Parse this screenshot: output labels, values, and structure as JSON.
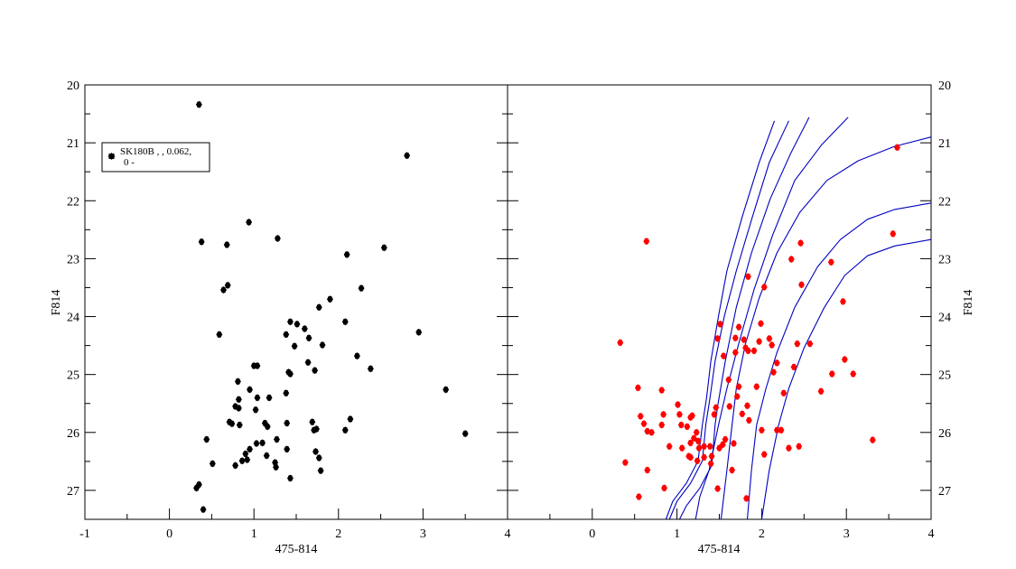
{
  "chart_data": [
    {
      "type": "scatter",
      "panel": "left",
      "xlabel": "475-814",
      "ylabel": "F814",
      "xlim": [
        -1,
        4
      ],
      "ylim": [
        27.5,
        20
      ],
      "y_inverted": true,
      "x_ticks": [
        "-1",
        "0",
        "1",
        "2",
        "3",
        "4"
      ],
      "y_ticks": [
        "20",
        "21",
        "22",
        "23",
        "24",
        "25",
        "26",
        "27"
      ],
      "legend": {
        "placement": "top-left",
        "line1": "SK180B  ,   , 0.062,",
        "line2": "0 -"
      },
      "series": [
        {
          "name": "SK180B",
          "color": "#000000",
          "points": [
            [
              0.35,
              20.34
            ],
            [
              2.81,
              21.22
            ],
            [
              0.94,
              22.37
            ],
            [
              0.38,
              22.71
            ],
            [
              0.68,
              22.76
            ],
            [
              1.28,
              22.65
            ],
            [
              2.1,
              22.93
            ],
            [
              2.54,
              22.81
            ],
            [
              0.64,
              23.54
            ],
            [
              0.69,
              23.46
            ],
            [
              2.27,
              23.51
            ],
            [
              1.9,
              23.7
            ],
            [
              1.77,
              23.84
            ],
            [
              2.08,
              24.09
            ],
            [
              0.59,
              24.31
            ],
            [
              1.43,
              24.09
            ],
            [
              1.51,
              24.13
            ],
            [
              1.6,
              24.21
            ],
            [
              1.38,
              24.31
            ],
            [
              1.65,
              24.37
            ],
            [
              1.48,
              24.51
            ],
            [
              1.81,
              24.49
            ],
            [
              2.95,
              24.27
            ],
            [
              2.22,
              24.68
            ],
            [
              1.64,
              24.79
            ],
            [
              1.72,
              24.93
            ],
            [
              2.38,
              24.9
            ],
            [
              1.0,
              24.85
            ],
            [
              1.04,
              24.85
            ],
            [
              1.41,
              24.96
            ],
            [
              1.43,
              24.99
            ],
            [
              0.81,
              25.12
            ],
            [
              0.95,
              25.26
            ],
            [
              0.82,
              25.43
            ],
            [
              1.04,
              25.4
            ],
            [
              1.18,
              25.4
            ],
            [
              1.38,
              25.32
            ],
            [
              3.27,
              25.26
            ],
            [
              0.78,
              25.55
            ],
            [
              0.82,
              25.58
            ],
            [
              1.02,
              25.61
            ],
            [
              0.71,
              25.82
            ],
            [
              0.74,
              25.85
            ],
            [
              0.83,
              25.87
            ],
            [
              1.13,
              25.84
            ],
            [
              1.16,
              25.9
            ],
            [
              1.39,
              25.84
            ],
            [
              1.69,
              25.82
            ],
            [
              1.71,
              25.96
            ],
            [
              1.74,
              25.94
            ],
            [
              2.14,
              25.77
            ],
            [
              2.08,
              25.96
            ],
            [
              3.5,
              26.02
            ],
            [
              0.44,
              26.12
            ],
            [
              1.27,
              26.12
            ],
            [
              1.1,
              26.18
            ],
            [
              1.03,
              26.19
            ],
            [
              0.95,
              26.29
            ],
            [
              1.39,
              26.29
            ],
            [
              0.9,
              26.37
            ],
            [
              1.73,
              26.33
            ],
            [
              1.77,
              26.44
            ],
            [
              1.15,
              26.4
            ],
            [
              0.51,
              26.54
            ],
            [
              0.78,
              26.57
            ],
            [
              0.86,
              26.49
            ],
            [
              0.92,
              26.47
            ],
            [
              1.25,
              26.52
            ],
            [
              1.26,
              26.6
            ],
            [
              1.79,
              26.66
            ],
            [
              1.43,
              26.79
            ],
            [
              0.35,
              26.9
            ],
            [
              0.32,
              26.96
            ],
            [
              0.4,
              27.33
            ]
          ]
        }
      ]
    },
    {
      "type": "scatter",
      "panel": "right",
      "xlabel": "475-814",
      "ylabel": "F814",
      "xlim": [
        -1,
        4
      ],
      "ylim": [
        27.5,
        20
      ],
      "y_inverted": true,
      "x_ticks": [
        "0",
        "1",
        "2",
        "3",
        "4"
      ],
      "y_ticks": [
        "20",
        "21",
        "22",
        "23",
        "24",
        "25",
        "26",
        "27"
      ],
      "series": [
        {
          "name": "stars",
          "color": "#ff0000",
          "points": [
            [
              3.6,
              21.08
            ],
            [
              3.55,
              22.57
            ],
            [
              0.64,
              22.7
            ],
            [
              2.46,
              22.73
            ],
            [
              2.35,
              23.01
            ],
            [
              2.82,
              23.06
            ],
            [
              1.84,
              23.31
            ],
            [
              2.47,
              23.45
            ],
            [
              2.03,
              23.49
            ],
            [
              2.96,
              23.74
            ],
            [
              0.33,
              24.45
            ],
            [
              1.51,
              24.13
            ],
            [
              1.73,
              24.18
            ],
            [
              1.99,
              24.12
            ],
            [
              1.48,
              24.38
            ],
            [
              1.69,
              24.37
            ],
            [
              1.79,
              24.4
            ],
            [
              1.97,
              24.43
            ],
            [
              2.09,
              24.38
            ],
            [
              1.69,
              24.62
            ],
            [
              1.84,
              24.59
            ],
            [
              1.81,
              24.54
            ],
            [
              1.91,
              24.59
            ],
            [
              2.12,
              24.49
            ],
            [
              2.42,
              24.47
            ],
            [
              2.57,
              24.47
            ],
            [
              2.18,
              24.8
            ],
            [
              2.38,
              24.87
            ],
            [
              2.14,
              24.96
            ],
            [
              2.98,
              24.74
            ],
            [
              2.83,
              24.99
            ],
            [
              3.08,
              24.99
            ],
            [
              1.55,
              24.68
            ],
            [
              1.61,
              25.09
            ],
            [
              1.73,
              25.21
            ],
            [
              1.94,
              25.21
            ],
            [
              1.46,
              25.57
            ],
            [
              1.62,
              25.55
            ],
            [
              1.71,
              25.38
            ],
            [
              1.83,
              25.54
            ],
            [
              1.77,
              25.68
            ],
            [
              2.26,
              25.32
            ],
            [
              2.7,
              25.29
            ],
            [
              0.54,
              25.23
            ],
            [
              0.82,
              25.27
            ],
            [
              1.01,
              25.52
            ],
            [
              0.84,
              25.69
            ],
            [
              1.03,
              25.69
            ],
            [
              1.18,
              25.71
            ],
            [
              0.57,
              25.72
            ],
            [
              0.61,
              25.85
            ],
            [
              0.65,
              25.98
            ],
            [
              0.7,
              26.0
            ],
            [
              1.12,
              25.9
            ],
            [
              0.82,
              25.87
            ],
            [
              1.16,
              25.74
            ],
            [
              1.05,
              25.87
            ],
            [
              1.44,
              25.69
            ],
            [
              1.2,
              26.1
            ],
            [
              1.23,
              26.0
            ],
            [
              1.25,
              26.15
            ],
            [
              0.91,
              26.24
            ],
            [
              1.16,
              26.18
            ],
            [
              1.06,
              26.27
            ],
            [
              1.26,
              26.27
            ],
            [
              1.32,
              26.24
            ],
            [
              1.5,
              26.27
            ],
            [
              1.54,
              26.21
            ],
            [
              1.41,
              26.41
            ],
            [
              1.57,
              26.12
            ],
            [
              1.67,
              26.19
            ],
            [
              1.14,
              26.41
            ],
            [
              1.4,
              26.54
            ],
            [
              1.24,
              26.49
            ],
            [
              1.16,
              26.43
            ],
            [
              1.32,
              26.43
            ],
            [
              1.39,
              26.24
            ],
            [
              1.85,
              25.79
            ],
            [
              2.0,
              25.96
            ],
            [
              2.18,
              25.96
            ],
            [
              2.23,
              25.96
            ],
            [
              2.03,
              26.38
            ],
            [
              2.32,
              26.27
            ],
            [
              2.44,
              26.24
            ],
            [
              3.31,
              26.13
            ],
            [
              0.39,
              26.52
            ],
            [
              0.65,
              26.65
            ],
            [
              0.85,
              26.96
            ],
            [
              0.55,
              27.11
            ],
            [
              1.48,
              26.97
            ],
            [
              1.82,
              27.14
            ],
            [
              1.65,
              26.65
            ]
          ]
        }
      ],
      "isochrones": {
        "color": "#0000c0",
        "lines": [
          [
            [
              2.15,
              20.62
            ],
            [
              1.97,
              21.34
            ],
            [
              1.77,
              22.28
            ],
            [
              1.59,
              23.21
            ],
            [
              1.49,
              23.99
            ],
            [
              1.4,
              24.77
            ],
            [
              1.35,
              25.4
            ],
            [
              1.3,
              25.87
            ],
            [
              1.25,
              26.49
            ],
            [
              1.11,
              26.88
            ],
            [
              0.95,
              27.19
            ],
            [
              0.87,
              27.5
            ]
          ],
          [
            [
              2.32,
              20.62
            ],
            [
              2.09,
              21.34
            ],
            [
              1.89,
              22.28
            ],
            [
              1.7,
              23.21
            ],
            [
              1.56,
              23.99
            ],
            [
              1.45,
              24.77
            ],
            [
              1.39,
              25.4
            ],
            [
              1.34,
              25.87
            ],
            [
              1.3,
              26.49
            ],
            [
              1.16,
              26.88
            ],
            [
              1.0,
              27.19
            ],
            [
              0.91,
              27.5
            ]
          ],
          [
            [
              2.56,
              20.56
            ],
            [
              2.34,
              21.19
            ],
            [
              2.1,
              21.97
            ],
            [
              1.88,
              22.9
            ],
            [
              1.7,
              23.84
            ],
            [
              1.57,
              24.77
            ],
            [
              1.48,
              25.55
            ],
            [
              1.45,
              25.87
            ],
            [
              1.41,
              26.57
            ],
            [
              1.27,
              26.96
            ],
            [
              1.11,
              27.27
            ],
            [
              1.03,
              27.5
            ]
          ],
          [
            [
              3.02,
              20.56
            ],
            [
              2.71,
              21.03
            ],
            [
              2.39,
              21.65
            ],
            [
              2.13,
              22.59
            ],
            [
              1.91,
              23.53
            ],
            [
              1.73,
              24.46
            ],
            [
              1.59,
              25.24
            ],
            [
              1.49,
              25.87
            ],
            [
              1.38,
              26.65
            ],
            [
              1.27,
              27.11
            ],
            [
              1.22,
              27.5
            ]
          ],
          [
            [
              4.0,
              20.9
            ],
            [
              3.57,
              21.06
            ],
            [
              3.14,
              21.31
            ],
            [
              2.77,
              21.65
            ],
            [
              2.45,
              22.2
            ],
            [
              2.18,
              22.9
            ],
            [
              1.97,
              23.68
            ],
            [
              1.81,
              24.46
            ],
            [
              1.7,
              25.24
            ],
            [
              1.65,
              25.87
            ],
            [
              1.59,
              26.65
            ],
            [
              1.52,
              27.5
            ]
          ],
          [
            [
              4.0,
              22.04
            ],
            [
              3.57,
              22.15
            ],
            [
              3.25,
              22.32
            ],
            [
              2.93,
              22.67
            ],
            [
              2.66,
              23.14
            ],
            [
              2.39,
              23.84
            ],
            [
              2.18,
              24.62
            ],
            [
              2.05,
              25.24
            ],
            [
              1.94,
              25.87
            ],
            [
              1.88,
              26.65
            ],
            [
              1.83,
              27.5
            ]
          ],
          [
            [
              4.0,
              22.67
            ],
            [
              3.57,
              22.78
            ],
            [
              3.25,
              22.95
            ],
            [
              2.98,
              23.29
            ],
            [
              2.74,
              23.84
            ],
            [
              2.5,
              24.54
            ],
            [
              2.32,
              25.24
            ],
            [
              2.2,
              25.87
            ],
            [
              2.09,
              26.65
            ],
            [
              2.0,
              27.5
            ]
          ]
        ]
      }
    }
  ]
}
